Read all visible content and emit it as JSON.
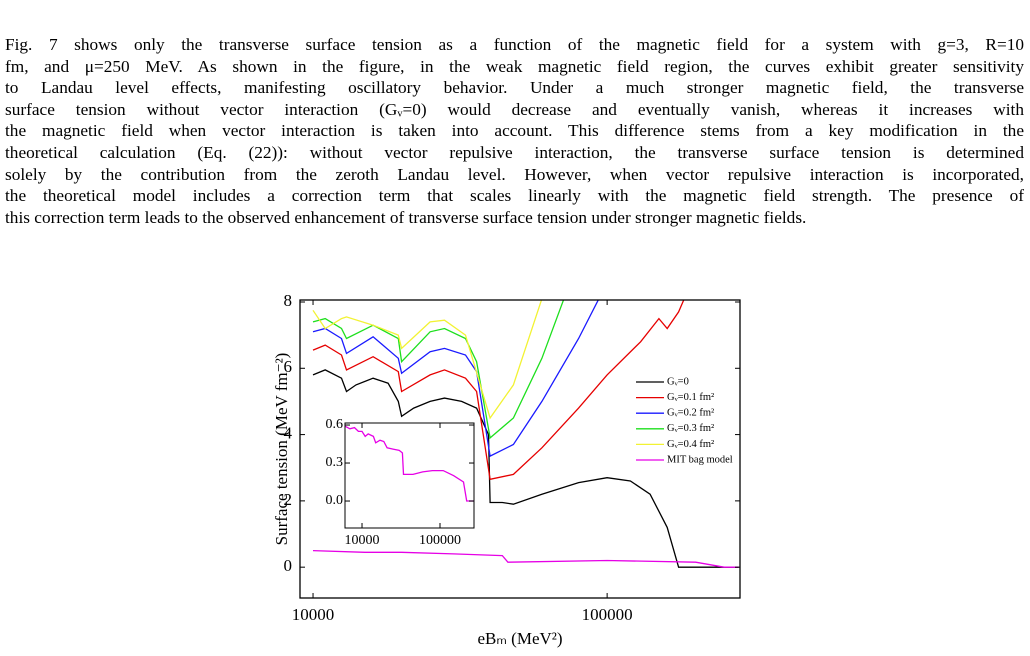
{
  "document": {
    "paragraph_lines": [
      "Fig. 7 shows only the transverse surface tension as a function of the magnetic field for a system with g=3, R=10",
      "fm, and μ=250 MeV. As shown in the figure, in the weak magnetic field region, the curves exhibit greater sensitivity",
      "to Landau level effects, manifesting oscillatory behavior. Under a much stronger magnetic field, the transverse",
      "surface tension without vector interaction (Gᵥ=0) would decrease and eventually vanish, whereas it increases with",
      "the magnetic field when vector interaction is taken into account. This difference stems from a key modification in the",
      "theoretical calculation (Eq. (22)): without vector repulsive interaction, the transverse surface tension is determined",
      "solely by the contribution from the zeroth Landau level. However, when vector repulsive interaction is incorporated,",
      "the theoretical model includes a correction term that scales linearly with the magnetic field strength. The presence of",
      "this correction term leads to the observed enhancement of transverse surface tension under stronger magnetic fields."
    ]
  },
  "chart_data": [
    {
      "type": "line",
      "xlabel": "eBₘ (MeV²)",
      "ylabel": "Surface tension (MeV fm⁻²)",
      "xscale": "log",
      "xlim": [
        9030,
        283000
      ],
      "ylim": [
        -0.93,
        8.06
      ],
      "xticks": [
        10000,
        100000
      ],
      "yticks": [
        0,
        2,
        4,
        6,
        8
      ],
      "legend": "right",
      "series": [
        {
          "name": "Gᵥ=0",
          "color": "#000000",
          "x": [
            10000,
            11000,
            12500,
            13000,
            14000,
            16000,
            18000,
            19500,
            20000,
            22000,
            25000,
            28000,
            32000,
            36000,
            39500,
            40000,
            44000,
            48000,
            60000,
            80000,
            100000,
            120000,
            140000,
            160000,
            175000,
            280000
          ],
          "values": [
            5.8,
            5.95,
            5.7,
            5.3,
            5.5,
            5.7,
            5.55,
            5.0,
            4.55,
            4.8,
            5.0,
            5.1,
            5.0,
            4.8,
            4.0,
            1.95,
            1.95,
            1.9,
            2.2,
            2.55,
            2.7,
            2.6,
            2.2,
            1.2,
            0,
            0
          ]
        },
        {
          "name": "Gᵥ=0.1 fm²",
          "color": "#e60000",
          "x": [
            10000,
            11000,
            12500,
            13000,
            16000,
            19500,
            20000,
            25000,
            28000,
            33000,
            36000,
            40000,
            48000,
            60000,
            80000,
            100000,
            130000,
            150000,
            160000,
            175000,
            185000
          ],
          "values": [
            6.55,
            6.7,
            6.4,
            5.95,
            6.35,
            5.9,
            5.3,
            5.8,
            5.95,
            5.7,
            5.3,
            2.65,
            2.8,
            3.6,
            4.8,
            5.8,
            6.8,
            7.5,
            7.2,
            7.7,
            8.2
          ]
        },
        {
          "name": "Gᵥ=0.2 fm²",
          "color": "#1a1aff",
          "x": [
            10000,
            11000,
            12500,
            13000,
            16000,
            19500,
            20000,
            25000,
            28000,
            33000,
            36000,
            40000,
            48000,
            60000,
            80000,
            95000
          ],
          "values": [
            7.1,
            7.2,
            6.9,
            6.45,
            6.95,
            6.3,
            5.85,
            6.5,
            6.6,
            6.4,
            5.9,
            3.35,
            3.7,
            5.0,
            6.9,
            8.2
          ]
        },
        {
          "name": "Gᵥ=0.3 fm²",
          "color": "#1ddf1d",
          "x": [
            10000,
            11000,
            12500,
            13000,
            16000,
            19500,
            20000,
            25000,
            28000,
            33000,
            36000,
            40000,
            48000,
            60000,
            72000
          ],
          "values": [
            7.4,
            7.5,
            7.2,
            6.9,
            7.3,
            6.9,
            6.2,
            7.1,
            7.2,
            6.9,
            6.2,
            3.9,
            4.5,
            6.3,
            8.2
          ]
        },
        {
          "name": "Gᵥ=0.4 fm²",
          "color": "#f2f233",
          "x": [
            10000,
            11000,
            12500,
            13000,
            16000,
            19500,
            20000,
            25000,
            28000,
            33000,
            40000,
            48000,
            60000
          ],
          "values": [
            7.75,
            7.2,
            7.5,
            7.55,
            7.3,
            7.0,
            6.6,
            7.4,
            7.45,
            7.0,
            4.5,
            5.5,
            8.1
          ]
        },
        {
          "name": "MIT bag model",
          "color": "#e600e6",
          "x": [
            10000,
            15000,
            20000,
            30000,
            44000,
            46000,
            100000,
            200000,
            250000,
            280000
          ],
          "values": [
            0.5,
            0.45,
            0.45,
            0.4,
            0.35,
            0.15,
            0.2,
            0.15,
            0,
            0
          ]
        }
      ]
    },
    {
      "type": "line",
      "xscale": "log",
      "xlim": [
        6050,
        273000
      ],
      "ylim": [
        -0.213,
        0.616
      ],
      "xticks": [
        10000,
        100000
      ],
      "yticks": [
        {
          "value": 0,
          "label": "0.0"
        },
        0.3,
        0.6
      ],
      "series": [
        {
          "color": "#e600e6",
          "x": [
            6100,
            7000,
            8000,
            9000,
            10000,
            11000,
            12000,
            14000,
            15000,
            17000,
            19000,
            21000,
            25000,
            30000,
            33000,
            34000,
            45000,
            60000,
            80000,
            110000,
            150000,
            200000,
            220000,
            273000
          ],
          "values": [
            0.59,
            0.57,
            0.58,
            0.55,
            0.55,
            0.51,
            0.53,
            0.51,
            0.46,
            0.48,
            0.47,
            0.42,
            0.41,
            0.4,
            0.38,
            0.21,
            0.21,
            0.23,
            0.24,
            0.24,
            0.2,
            0.15,
            0,
            0
          ]
        }
      ]
    }
  ]
}
